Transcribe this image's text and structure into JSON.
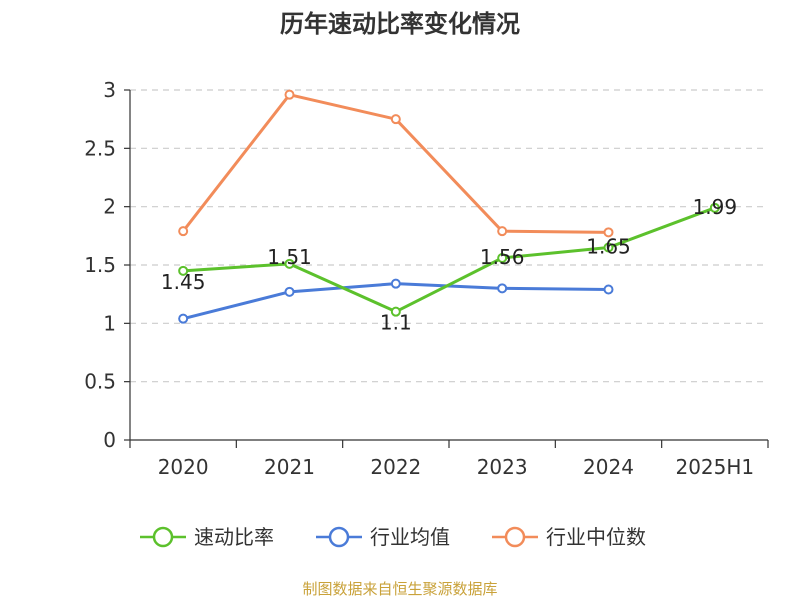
{
  "chart_data": {
    "type": "line",
    "title": "历年速动比率变化情况",
    "categories": [
      "2020",
      "2021",
      "2022",
      "2023",
      "2024",
      "2025H1"
    ],
    "ylim": [
      0,
      3
    ],
    "yticks": [
      "0",
      "0.5",
      "1",
      "1.5",
      "2",
      "2.5",
      "3"
    ],
    "grid": true,
    "legend_position": "bottom",
    "series": [
      {
        "name": "速动比率",
        "color": "#5cc12c",
        "values": [
          1.45,
          1.51,
          1.1,
          1.56,
          1.65,
          1.99
        ],
        "labels": [
          "1.45",
          "1.51",
          "1.1",
          "1.56",
          "1.65",
          "1.99"
        ]
      },
      {
        "name": "行业均值",
        "color": "#4a7bd8",
        "values": [
          1.04,
          1.27,
          1.34,
          1.3,
          1.29,
          null
        ]
      },
      {
        "name": "行业中位数",
        "color": "#f28c5a",
        "values": [
          1.79,
          2.96,
          2.75,
          1.79,
          1.78,
          null
        ]
      }
    ]
  },
  "source_text": "制图数据来自恒生聚源数据库"
}
